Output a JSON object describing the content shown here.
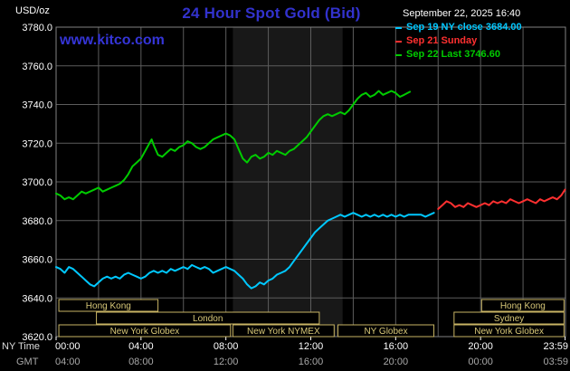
{
  "header": {
    "units_label": "USD/oz",
    "title": "24 Hour Spot Gold (Bid)",
    "datetime": "September 22, 2025 16:40",
    "watermark": "www.kitco.com"
  },
  "legend": [
    {
      "label": "Sep 19 NY close 3684.00",
      "color": "#00c8ff"
    },
    {
      "label": "Sep 21 Sunday",
      "color": "#ff3030"
    },
    {
      "label": "Sep 22 Last 3746.60",
      "color": "#00cc00"
    }
  ],
  "axes": {
    "ny_time_label": "NY Time",
    "gmt_label": "GMT",
    "y_ticks": [
      {
        "value": 3780,
        "label": "3780.0"
      },
      {
        "value": 3760,
        "label": "3760.0"
      },
      {
        "value": 3740,
        "label": "3740.0"
      },
      {
        "value": 3720,
        "label": "3720.0"
      },
      {
        "value": 3700,
        "label": "3700.0"
      },
      {
        "value": 3680,
        "label": "3680.0"
      },
      {
        "value": 3660,
        "label": "3660.0"
      },
      {
        "value": 3640,
        "label": "3640.0"
      },
      {
        "value": 3620,
        "label": "3620.0"
      }
    ],
    "x_ticks": [
      {
        "h": 0,
        "ny": "00:00",
        "gmt": "04:00"
      },
      {
        "h": 4,
        "ny": "04:00",
        "gmt": "08:00"
      },
      {
        "h": 8,
        "ny": "08:00",
        "gmt": "12:00"
      },
      {
        "h": 12,
        "ny": "12:00",
        "gmt": "16:00"
      },
      {
        "h": 16,
        "ny": "16:00",
        "gmt": "20:00"
      },
      {
        "h": 20,
        "ny": "20:00",
        "gmt": "00:00"
      },
      {
        "h": 23.983,
        "ny": "23:59",
        "gmt": "03:59"
      }
    ]
  },
  "chart_data": {
    "type": "line",
    "title": "24 Hour Spot Gold (Bid)",
    "xlabel": "NY Time",
    "ylabel": "USD/oz",
    "ylim": [
      3620,
      3780
    ],
    "xlim_hours": [
      0,
      24
    ],
    "grid": true,
    "nymex_band": {
      "start": 8.33,
      "end": 13.5,
      "color": "#181818"
    },
    "series": [
      {
        "id": "sep19",
        "name": "Sep 19 NY close",
        "color": "#00c8ff",
        "close": 3684.0,
        "points": [
          [
            0,
            3656
          ],
          [
            0.2,
            3655
          ],
          [
            0.4,
            3653
          ],
          [
            0.6,
            3656
          ],
          [
            0.8,
            3655
          ],
          [
            1.0,
            3653
          ],
          [
            1.2,
            3651
          ],
          [
            1.4,
            3649
          ],
          [
            1.6,
            3647
          ],
          [
            1.8,
            3646
          ],
          [
            2.0,
            3648
          ],
          [
            2.2,
            3650
          ],
          [
            2.4,
            3651
          ],
          [
            2.6,
            3650
          ],
          [
            2.8,
            3651
          ],
          [
            3.0,
            3650
          ],
          [
            3.2,
            3652
          ],
          [
            3.4,
            3653
          ],
          [
            3.6,
            3652
          ],
          [
            3.8,
            3651
          ],
          [
            4.0,
            3650
          ],
          [
            4.2,
            3651
          ],
          [
            4.4,
            3653
          ],
          [
            4.6,
            3654
          ],
          [
            4.8,
            3653
          ],
          [
            5.0,
            3654
          ],
          [
            5.2,
            3653
          ],
          [
            5.4,
            3655
          ],
          [
            5.6,
            3654
          ],
          [
            5.8,
            3655
          ],
          [
            6.0,
            3656
          ],
          [
            6.2,
            3655
          ],
          [
            6.4,
            3657
          ],
          [
            6.6,
            3656
          ],
          [
            6.8,
            3655
          ],
          [
            7.0,
            3656
          ],
          [
            7.2,
            3655
          ],
          [
            7.4,
            3653
          ],
          [
            7.6,
            3654
          ],
          [
            7.8,
            3655
          ],
          [
            8.0,
            3656
          ],
          [
            8.2,
            3655
          ],
          [
            8.4,
            3654
          ],
          [
            8.6,
            3652
          ],
          [
            8.8,
            3650
          ],
          [
            9.0,
            3647
          ],
          [
            9.2,
            3645
          ],
          [
            9.4,
            3646
          ],
          [
            9.6,
            3648
          ],
          [
            9.8,
            3647
          ],
          [
            10.0,
            3649
          ],
          [
            10.2,
            3650
          ],
          [
            10.4,
            3652
          ],
          [
            10.6,
            3653
          ],
          [
            10.8,
            3654
          ],
          [
            11.0,
            3656
          ],
          [
            11.2,
            3659
          ],
          [
            11.4,
            3662
          ],
          [
            11.6,
            3665
          ],
          [
            11.8,
            3668
          ],
          [
            12.0,
            3671
          ],
          [
            12.2,
            3674
          ],
          [
            12.4,
            3676
          ],
          [
            12.6,
            3678
          ],
          [
            12.8,
            3680
          ],
          [
            13.0,
            3681
          ],
          [
            13.2,
            3682
          ],
          [
            13.4,
            3683
          ],
          [
            13.6,
            3682
          ],
          [
            13.8,
            3683
          ],
          [
            14.0,
            3684
          ],
          [
            14.2,
            3683
          ],
          [
            14.4,
            3682
          ],
          [
            14.6,
            3683
          ],
          [
            14.8,
            3682
          ],
          [
            15.0,
            3683
          ],
          [
            15.2,
            3682
          ],
          [
            15.4,
            3683
          ],
          [
            15.6,
            3682
          ],
          [
            15.8,
            3683
          ],
          [
            16.0,
            3682
          ],
          [
            16.2,
            3683
          ],
          [
            16.4,
            3682
          ],
          [
            16.6,
            3683
          ],
          [
            16.8,
            3683
          ],
          [
            17.0,
            3683
          ],
          [
            17.2,
            3683
          ],
          [
            17.4,
            3682
          ],
          [
            17.6,
            3683
          ],
          [
            17.8,
            3684
          ]
        ]
      },
      {
        "id": "sep21",
        "name": "Sep 21 Sunday",
        "color": "#ff3030",
        "points": [
          [
            18.0,
            3686
          ],
          [
            18.2,
            3688
          ],
          [
            18.4,
            3690
          ],
          [
            18.6,
            3689
          ],
          [
            18.8,
            3687
          ],
          [
            19.0,
            3688
          ],
          [
            19.2,
            3687
          ],
          [
            19.4,
            3689
          ],
          [
            19.6,
            3688
          ],
          [
            19.8,
            3687
          ],
          [
            20.0,
            3688
          ],
          [
            20.2,
            3689
          ],
          [
            20.4,
            3688
          ],
          [
            20.6,
            3690
          ],
          [
            20.8,
            3689
          ],
          [
            21.0,
            3690
          ],
          [
            21.2,
            3689
          ],
          [
            21.4,
            3691
          ],
          [
            21.6,
            3690
          ],
          [
            21.8,
            3689
          ],
          [
            22.0,
            3690
          ],
          [
            22.2,
            3691
          ],
          [
            22.4,
            3690
          ],
          [
            22.6,
            3689
          ],
          [
            22.8,
            3691
          ],
          [
            23.0,
            3690
          ],
          [
            23.2,
            3691
          ],
          [
            23.4,
            3692
          ],
          [
            23.6,
            3691
          ],
          [
            23.8,
            3693
          ],
          [
            23.98,
            3696
          ]
        ]
      },
      {
        "id": "sep22",
        "name": "Sep 22",
        "color": "#00cc00",
        "last": 3746.6,
        "points": [
          [
            0,
            3694
          ],
          [
            0.2,
            3693
          ],
          [
            0.4,
            3691
          ],
          [
            0.6,
            3692
          ],
          [
            0.8,
            3691
          ],
          [
            1.0,
            3693
          ],
          [
            1.2,
            3695
          ],
          [
            1.4,
            3694
          ],
          [
            1.6,
            3695
          ],
          [
            1.8,
            3696
          ],
          [
            2.0,
            3697
          ],
          [
            2.2,
            3695
          ],
          [
            2.4,
            3696
          ],
          [
            2.6,
            3697
          ],
          [
            2.8,
            3698
          ],
          [
            3.0,
            3699
          ],
          [
            3.2,
            3701
          ],
          [
            3.4,
            3704
          ],
          [
            3.6,
            3708
          ],
          [
            3.8,
            3710
          ],
          [
            4.0,
            3712
          ],
          [
            4.2,
            3716
          ],
          [
            4.4,
            3720
          ],
          [
            4.5,
            3722
          ],
          [
            4.6,
            3719
          ],
          [
            4.8,
            3714
          ],
          [
            5.0,
            3713
          ],
          [
            5.2,
            3715
          ],
          [
            5.4,
            3717
          ],
          [
            5.6,
            3716
          ],
          [
            5.8,
            3718
          ],
          [
            6.0,
            3719
          ],
          [
            6.2,
            3721
          ],
          [
            6.4,
            3720
          ],
          [
            6.6,
            3718
          ],
          [
            6.8,
            3717
          ],
          [
            7.0,
            3718
          ],
          [
            7.2,
            3720
          ],
          [
            7.4,
            3722
          ],
          [
            7.6,
            3723
          ],
          [
            7.8,
            3724
          ],
          [
            8.0,
            3725
          ],
          [
            8.2,
            3724
          ],
          [
            8.4,
            3722
          ],
          [
            8.6,
            3717
          ],
          [
            8.8,
            3712
          ],
          [
            9.0,
            3710
          ],
          [
            9.2,
            3713
          ],
          [
            9.4,
            3714
          ],
          [
            9.6,
            3712
          ],
          [
            9.8,
            3713
          ],
          [
            10.0,
            3715
          ],
          [
            10.2,
            3714
          ],
          [
            10.4,
            3716
          ],
          [
            10.6,
            3715
          ],
          [
            10.8,
            3714
          ],
          [
            11.0,
            3716
          ],
          [
            11.2,
            3717
          ],
          [
            11.4,
            3719
          ],
          [
            11.6,
            3721
          ],
          [
            11.8,
            3723
          ],
          [
            12.0,
            3726
          ],
          [
            12.2,
            3729
          ],
          [
            12.4,
            3732
          ],
          [
            12.6,
            3734
          ],
          [
            12.8,
            3735
          ],
          [
            13.0,
            3734
          ],
          [
            13.2,
            3735
          ],
          [
            13.4,
            3736
          ],
          [
            13.6,
            3735
          ],
          [
            13.8,
            3737
          ],
          [
            14.0,
            3740
          ],
          [
            14.2,
            3743
          ],
          [
            14.4,
            3745
          ],
          [
            14.6,
            3746
          ],
          [
            14.8,
            3744
          ],
          [
            15.0,
            3745
          ],
          [
            15.2,
            3747
          ],
          [
            15.4,
            3745
          ],
          [
            15.6,
            3746
          ],
          [
            15.8,
            3747
          ],
          [
            16.0,
            3746
          ],
          [
            16.2,
            3744
          ],
          [
            16.4,
            3745
          ],
          [
            16.67,
            3746.6
          ]
        ]
      }
    ],
    "sessions": [
      {
        "label": "Hong Kong",
        "row": 0,
        "start": 0.13,
        "end": 4.8
      },
      {
        "label": "Hong Kong",
        "row": 0,
        "start": 20.05,
        "end": 23.93
      },
      {
        "label": "London",
        "row": 1,
        "start": 1.9,
        "end": 12.4
      },
      {
        "label": "Sydney",
        "row": 1,
        "start": 18.75,
        "end": 23.93
      },
      {
        "label": "New York Globex",
        "row": 2,
        "start": 0.13,
        "end": 8.22
      },
      {
        "label": "New York NYMEX",
        "row": 2,
        "start": 8.33,
        "end": 13.1
      },
      {
        "label": "NY Globex",
        "row": 2,
        "start": 13.28,
        "end": 17.8
      },
      {
        "label": "New York Globex",
        "row": 2,
        "start": 18.75,
        "end": 23.93
      }
    ]
  }
}
